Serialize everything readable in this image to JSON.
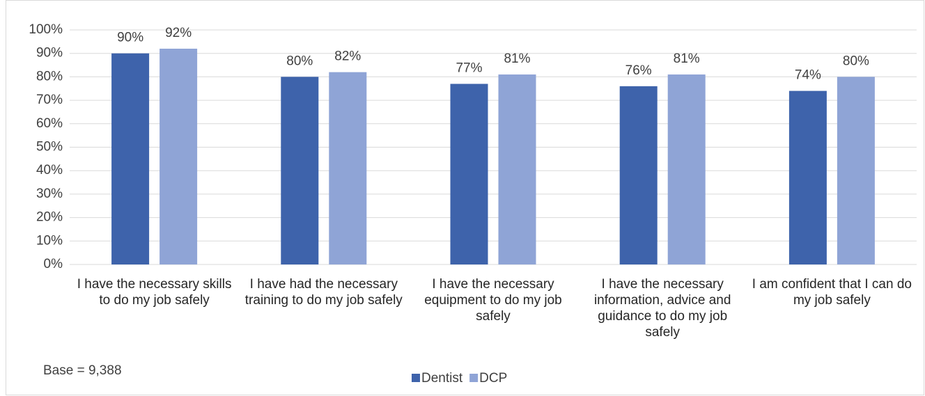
{
  "chart_data": {
    "type": "bar",
    "categories": [
      "I have the necessary skills to do my job safely",
      "I have had the necessary training to do my job safely",
      "I have the necessary equipment to do my job safely",
      "I have the necessary information, advice and guidance to do my job safely",
      "I am confident that I can do my job safely"
    ],
    "series": [
      {
        "name": "Dentist",
        "color": "#3e63ab",
        "values": [
          90,
          80,
          77,
          76,
          74
        ],
        "value_labels": [
          "90%",
          "80%",
          "77%",
          "76%",
          "74%"
        ]
      },
      {
        "name": "DCP",
        "color": "#8fa4d6",
        "values": [
          92,
          82,
          81,
          81,
          80
        ],
        "value_labels": [
          "92%",
          "82%",
          "81%",
          "81%",
          "80%"
        ]
      }
    ],
    "ylim": [
      0,
      100
    ],
    "yticks": [
      {
        "value": 0,
        "label": "0%"
      },
      {
        "value": 10,
        "label": "10%"
      },
      {
        "value": 20,
        "label": "20%"
      },
      {
        "value": 30,
        "label": "30%"
      },
      {
        "value": 40,
        "label": "40%"
      },
      {
        "value": 50,
        "label": "50%"
      },
      {
        "value": 60,
        "label": "60%"
      },
      {
        "value": 70,
        "label": "70%"
      },
      {
        "value": 80,
        "label": "80%"
      },
      {
        "value": 90,
        "label": "90%"
      },
      {
        "value": 100,
        "label": "100%"
      }
    ],
    "grid": true,
    "legend": "bottom",
    "annotation": "Base = 9,388"
  }
}
